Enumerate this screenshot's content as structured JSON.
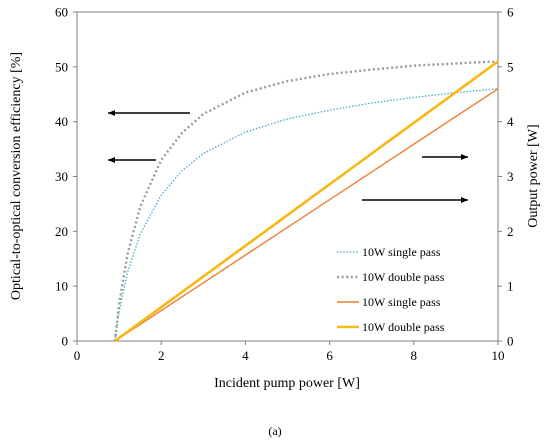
{
  "chart_data": {
    "type": "line",
    "title": "",
    "xlabel": "Incident pump power [W]",
    "ylabel_left": "Optical-to-optical conversion efficiency [%]",
    "ylabel_right": "Output power [W]",
    "xlim": [
      0,
      10
    ],
    "ylim_left": [
      0,
      60
    ],
    "ylim_right": [
      0,
      6
    ],
    "x_ticks": [
      "0",
      "2",
      "4",
      "6",
      "8",
      "10"
    ],
    "y_left_ticks": [
      "0",
      "10",
      "20",
      "30",
      "40",
      "50",
      "60"
    ],
    "y_right_ticks": [
      "0",
      "1",
      "2",
      "3",
      "4",
      "5",
      "6"
    ],
    "grid": false,
    "legend_position": "bottom-right",
    "series": [
      {
        "name": "10W single pass",
        "axis": "left",
        "style": "dotted",
        "color": "#3aa6c9",
        "x": [
          0.9,
          1.0,
          1.2,
          1.5,
          2.0,
          2.5,
          3.0,
          4.0,
          5.0,
          6.0,
          7.0,
          8.0,
          9.0,
          10.0
        ],
        "values": [
          0,
          5.4,
          12.5,
          19.5,
          26.6,
          31.1,
          34.2,
          38.1,
          40.5,
          42.1,
          43.4,
          44.4,
          45.3,
          46.0
        ]
      },
      {
        "name": "10W double pass",
        "axis": "left",
        "style": "dotted",
        "color": "#9a9a9a",
        "x": [
          0.9,
          1.0,
          1.2,
          1.5,
          2.0,
          2.5,
          3.0,
          4.0,
          5.0,
          6.0,
          7.0,
          8.0,
          9.0,
          10.0
        ],
        "values": [
          0,
          6.8,
          15.8,
          24.5,
          33.0,
          38.0,
          41.4,
          45.3,
          47.4,
          48.7,
          49.5,
          50.2,
          50.6,
          51.0
        ]
      },
      {
        "name": "10W single pass",
        "axis": "right",
        "style": "solid",
        "color": "#ef7d2e",
        "x": [
          0.9,
          10.0
        ],
        "values": [
          0,
          4.6
        ]
      },
      {
        "name": "10W double pass",
        "axis": "right",
        "style": "solid-thick",
        "color": "#f6b817",
        "x": [
          0.9,
          10.0
        ],
        "values": [
          0,
          5.1
        ]
      }
    ]
  },
  "caption": "(a)"
}
